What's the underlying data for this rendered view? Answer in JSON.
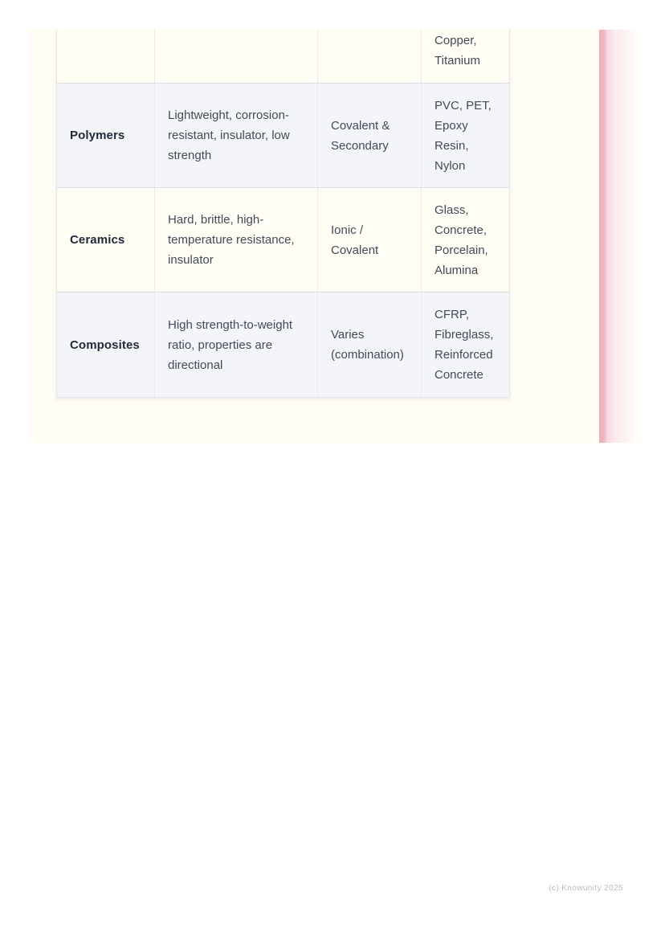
{
  "document": {
    "table": {
      "partial_row": {
        "material": "",
        "properties": "",
        "bonding": "",
        "examples": "Copper,\nTitanium"
      },
      "rows": [
        {
          "material": "Polymers",
          "properties": "Lightweight, corrosion-\nresistant, insulator, low\nstrength",
          "bonding": "Covalent &\nSecondary",
          "examples": "PVC, PET,\nEpoxy\nResin,\nNylon"
        },
        {
          "material": "Ceramics",
          "properties": "Hard, brittle, high-\ntemperature resistance,\ninsulator",
          "bonding": "Ionic /\nCovalent",
          "examples": "Glass,\nConcrete,\nPorcelain,\nAlumina"
        },
        {
          "material": "Composites",
          "properties": "High strength-to-weight\nratio, properties are\ndirectional",
          "bonding": "Varies\n(combination)",
          "examples": "CFRP,\nFibreglass,\nReinforced\nConcrete"
        }
      ]
    },
    "footer": "(c) Knowunity 2025",
    "colors": {
      "page_cream": "#fffdf4",
      "row_gray": "#f3f5f8",
      "pink_accent_stripe": "#ecb0bf",
      "pink_accent_fill": "#fbe7ed",
      "footer_text": "#b6bdc8"
    }
  }
}
